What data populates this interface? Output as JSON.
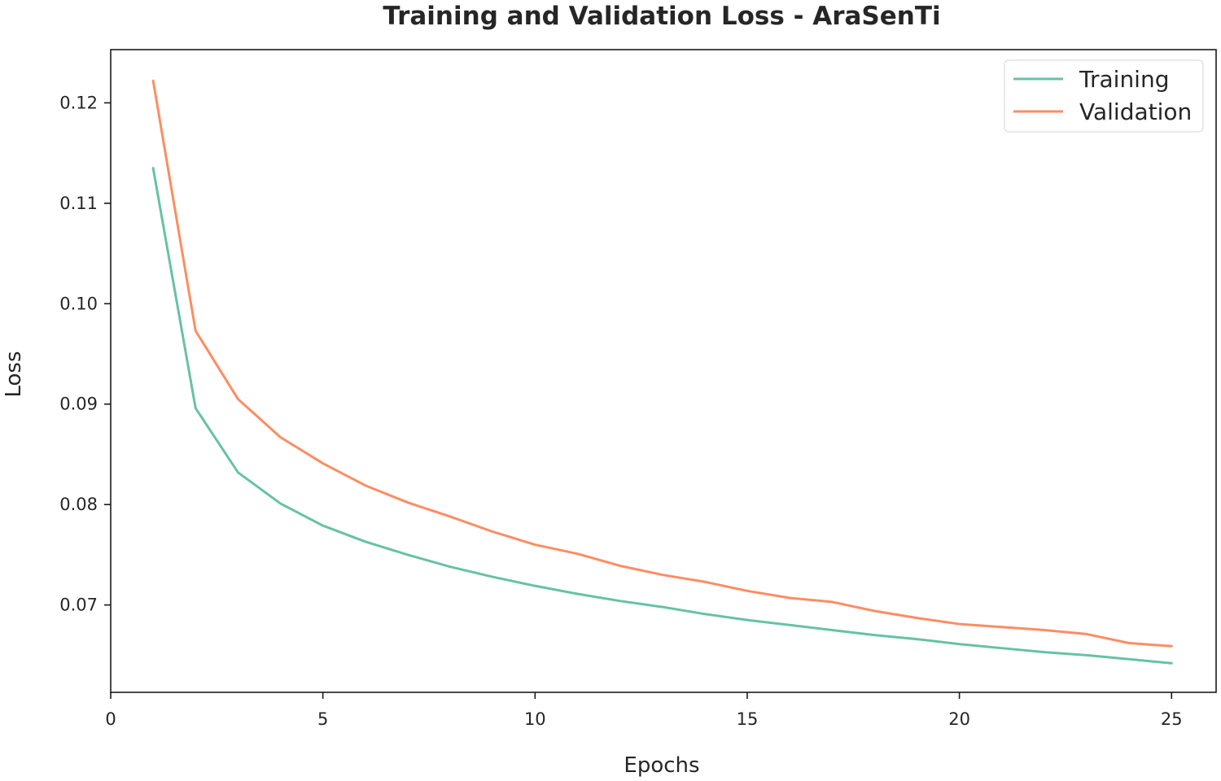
{
  "chart_data": {
    "type": "line",
    "title": "Training and Validation Loss - AraSenTi",
    "xlabel": "Epochs",
    "ylabel": "Loss",
    "xlim": [
      0,
      26.05
    ],
    "ylim": [
      0.0613,
      0.1253
    ],
    "xticks": [
      0,
      5,
      10,
      15,
      20,
      25
    ],
    "xtick_labels": [
      "0",
      "5",
      "10",
      "15",
      "20",
      "25"
    ],
    "yticks": [
      0.07,
      0.08,
      0.09,
      0.1,
      0.11,
      0.12
    ],
    "ytick_labels": [
      "0.07",
      "0.08",
      "0.09",
      "0.10",
      "0.11",
      "0.12"
    ],
    "grid": false,
    "legend_position": "top-right",
    "x": [
      1,
      2,
      3,
      4,
      5,
      6,
      7,
      8,
      9,
      10,
      11,
      12,
      13,
      14,
      15,
      16,
      17,
      18,
      19,
      20,
      21,
      22,
      23,
      24,
      25
    ],
    "series": [
      {
        "name": "Training",
        "color": "#66c2a5",
        "values": [
          0.1135,
          0.0896,
          0.0832,
          0.0801,
          0.0779,
          0.0763,
          0.075,
          0.0738,
          0.0728,
          0.0719,
          0.0711,
          0.0704,
          0.0698,
          0.0691,
          0.0685,
          0.068,
          0.0675,
          0.067,
          0.0666,
          0.0661,
          0.0657,
          0.0653,
          0.065,
          0.0646,
          0.0642
        ]
      },
      {
        "name": "Validation",
        "color": "#fc8d62",
        "values": [
          0.1222,
          0.0973,
          0.0905,
          0.0867,
          0.0841,
          0.0819,
          0.0802,
          0.0788,
          0.0773,
          0.076,
          0.0751,
          0.0739,
          0.073,
          0.0723,
          0.0714,
          0.0707,
          0.0703,
          0.0694,
          0.0687,
          0.0681,
          0.0678,
          0.0675,
          0.0671,
          0.0662,
          0.0659
        ]
      }
    ]
  }
}
